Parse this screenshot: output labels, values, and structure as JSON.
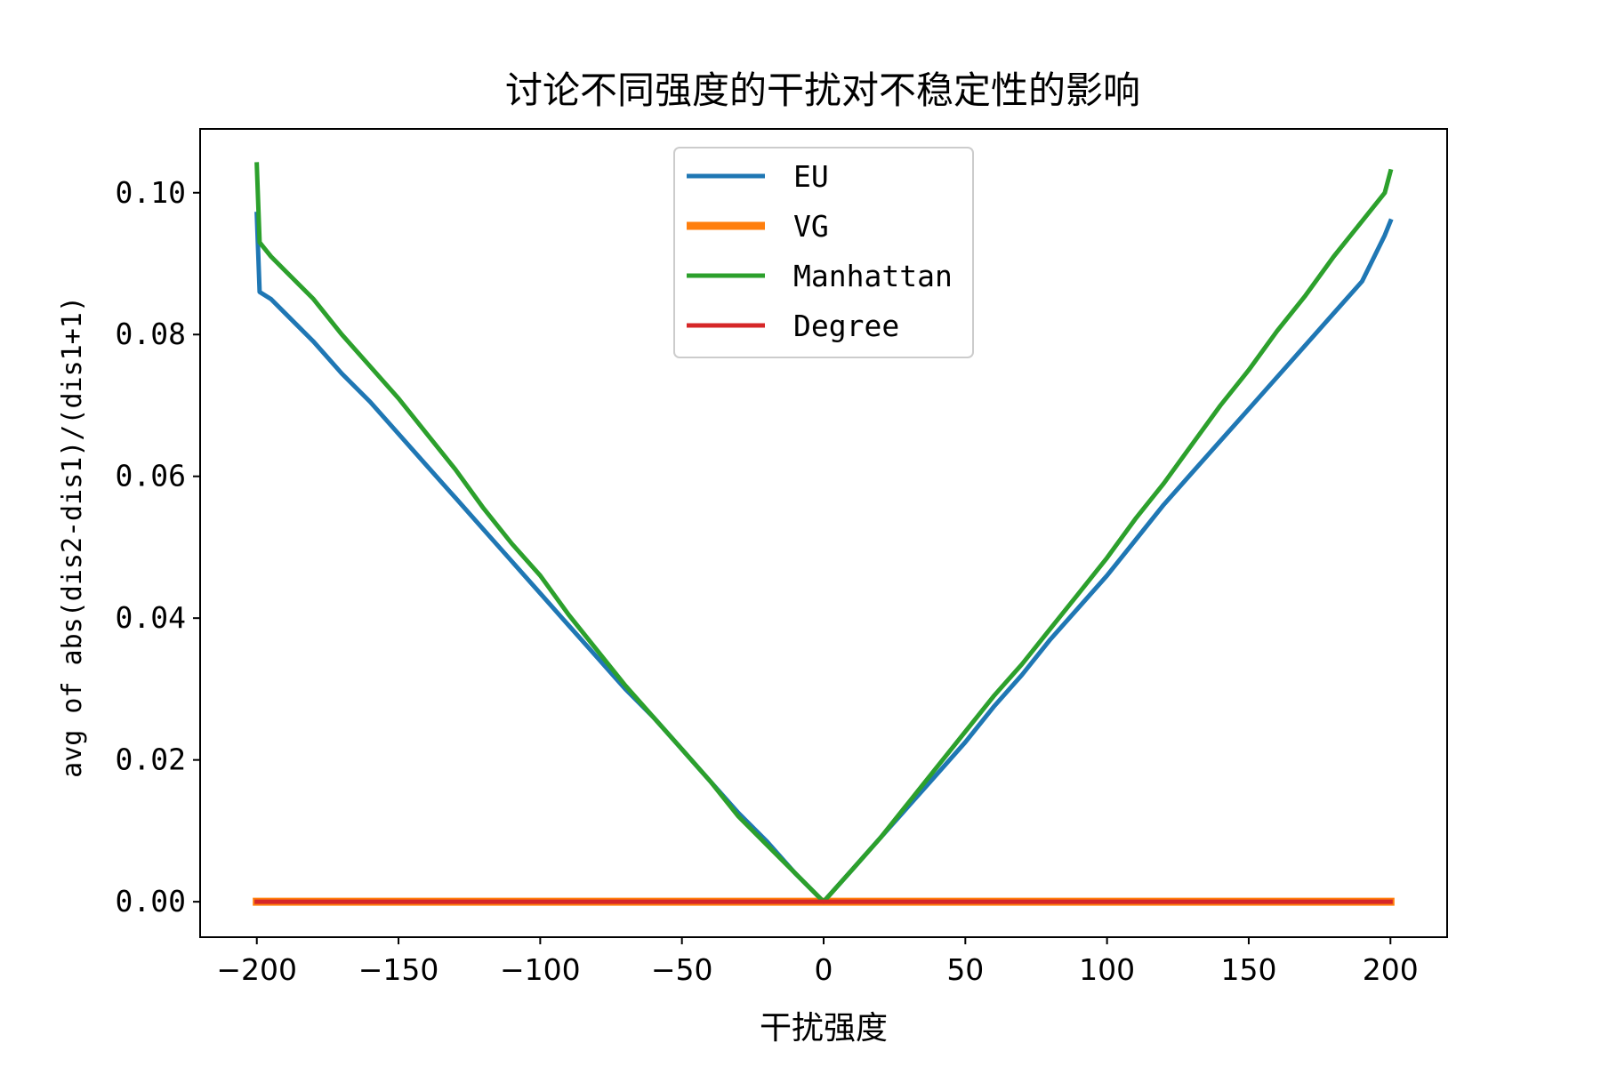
{
  "chart_data": {
    "type": "line",
    "title": "讨论不同强度的干扰对不稳定性的影响",
    "xlabel": "干扰强度",
    "ylabel": "avg of abs(dis2-dis1)/(dis1+1)",
    "xlim": [
      -220,
      220
    ],
    "ylim": [
      -0.005,
      0.109
    ],
    "xticks": [
      -200,
      -150,
      -100,
      -50,
      0,
      50,
      100,
      150,
      200
    ],
    "xtick_labels": [
      "−200",
      "−150",
      "−100",
      "−50",
      "0",
      "50",
      "100",
      "150",
      "200"
    ],
    "yticks": [
      0.0,
      0.02,
      0.04,
      0.06,
      0.08,
      0.1
    ],
    "ytick_labels": [
      "0.00",
      "0.02",
      "0.04",
      "0.06",
      "0.08",
      "0.10"
    ],
    "grid": false,
    "legend_position": "upper center",
    "series": [
      {
        "name": "EU",
        "color": "#1f77b4",
        "x": [
          -200,
          -199,
          -195,
          -190,
          -180,
          -170,
          -160,
          -150,
          -140,
          -130,
          -120,
          -110,
          -100,
          -90,
          -80,
          -70,
          -60,
          -50,
          -40,
          -30,
          -20,
          -10,
          0,
          10,
          20,
          30,
          40,
          50,
          60,
          70,
          80,
          90,
          100,
          110,
          120,
          130,
          140,
          150,
          160,
          170,
          180,
          190,
          198,
          200
        ],
        "y": [
          0.097,
          0.086,
          0.085,
          0.083,
          0.079,
          0.0745,
          0.0705,
          0.066,
          0.0615,
          0.057,
          0.0525,
          0.048,
          0.0435,
          0.039,
          0.0345,
          0.03,
          0.026,
          0.0215,
          0.017,
          0.0125,
          0.0085,
          0.004,
          0.0,
          0.0045,
          0.009,
          0.0135,
          0.018,
          0.0225,
          0.0275,
          0.032,
          0.037,
          0.0415,
          0.046,
          0.051,
          0.056,
          0.0605,
          0.065,
          0.0695,
          0.074,
          0.0785,
          0.083,
          0.0875,
          0.094,
          0.096
        ]
      },
      {
        "name": "VG",
        "color": "#ff7f0e",
        "x": [
          -200,
          200
        ],
        "y": [
          0.0,
          0.0
        ]
      },
      {
        "name": "Manhattan",
        "color": "#2ca02c",
        "x": [
          -200,
          -199,
          -197,
          -195,
          -190,
          -180,
          -170,
          -160,
          -150,
          -140,
          -130,
          -120,
          -110,
          -100,
          -90,
          -80,
          -70,
          -60,
          -50,
          -40,
          -30,
          -20,
          -10,
          0,
          10,
          20,
          30,
          40,
          50,
          60,
          70,
          80,
          90,
          100,
          110,
          120,
          130,
          140,
          150,
          160,
          170,
          180,
          190,
          198,
          200
        ],
        "y": [
          0.104,
          0.093,
          0.092,
          0.091,
          0.089,
          0.085,
          0.08,
          0.0755,
          0.071,
          0.066,
          0.061,
          0.0555,
          0.0505,
          0.046,
          0.0405,
          0.0355,
          0.0305,
          0.026,
          0.0215,
          0.017,
          0.012,
          0.008,
          0.004,
          0.0,
          0.0045,
          0.009,
          0.014,
          0.019,
          0.024,
          0.029,
          0.0335,
          0.0385,
          0.0435,
          0.0485,
          0.054,
          0.059,
          0.0645,
          0.07,
          0.075,
          0.0805,
          0.0855,
          0.091,
          0.096,
          0.1,
          0.103
        ]
      },
      {
        "name": "Degree",
        "color": "#d62728",
        "x": [
          -200,
          200
        ],
        "y": [
          0.0,
          0.0
        ]
      }
    ]
  }
}
